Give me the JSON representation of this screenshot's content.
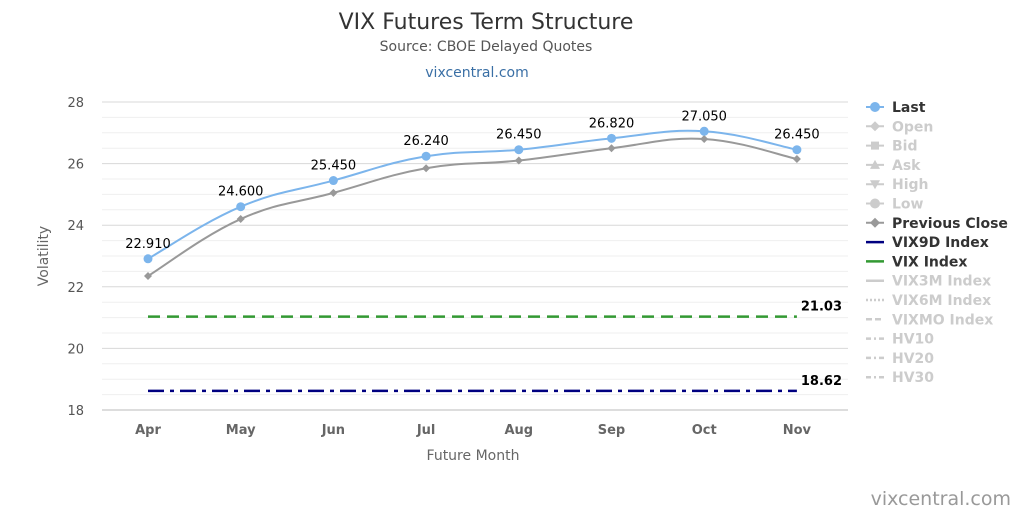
{
  "chart_data": {
    "type": "line",
    "title": "VIX Futures Term Structure",
    "subtitle": "Source: CBOE Delayed Quotes",
    "link_text": "vixcentral.com",
    "credit": "vixcentral.com",
    "xlabel": "Future Month",
    "ylabel": "Volatility",
    "ylim": [
      18,
      28
    ],
    "yticks": [
      "18",
      "20",
      "22",
      "24",
      "26",
      "28"
    ],
    "categories": [
      "Apr",
      "May",
      "Jun",
      "Jul",
      "Aug",
      "Sep",
      "Oct",
      "Nov"
    ],
    "grid": true,
    "legend_position": "right",
    "series": [
      {
        "name": "Last",
        "values": [
          22.91,
          24.6,
          25.45,
          26.24,
          26.45,
          26.82,
          27.05,
          26.45
        ],
        "labels": [
          "22.910",
          "24.600",
          "25.450",
          "26.240",
          "26.450",
          "26.820",
          "27.050",
          "26.450"
        ],
        "color": "#7cb5ec"
      },
      {
        "name": "Previous Close",
        "values": [
          22.35,
          24.2,
          25.05,
          25.85,
          26.1,
          26.5,
          26.8,
          26.15
        ],
        "color": "#999999"
      }
    ],
    "reference_lines": [
      {
        "name": "VIX Index",
        "value": 21.03,
        "label": "21.03",
        "color": "#339933"
      },
      {
        "name": "VIX9D Index",
        "value": 18.62,
        "label": "18.62",
        "color": "#000080"
      }
    ],
    "legend": [
      {
        "name": "Last",
        "active": true,
        "color": "#7cb5ec",
        "symbol": "circle"
      },
      {
        "name": "Open",
        "active": false,
        "symbol": "diamond"
      },
      {
        "name": "Bid",
        "active": false,
        "symbol": "square"
      },
      {
        "name": "Ask",
        "active": false,
        "symbol": "triangle"
      },
      {
        "name": "High",
        "active": false,
        "symbol": "triangle-down"
      },
      {
        "name": "Low",
        "active": false,
        "symbol": "circle"
      },
      {
        "name": "Previous Close",
        "active": true,
        "color": "#999999",
        "symbol": "diamond"
      },
      {
        "name": "VIX9D Index",
        "active": true,
        "color": "#000080",
        "symbol": "line"
      },
      {
        "name": "VIX Index",
        "active": true,
        "color": "#339933",
        "symbol": "line"
      },
      {
        "name": "VIX3M Index",
        "active": false,
        "symbol": "line"
      },
      {
        "name": "VIX6M Index",
        "active": false,
        "symbol": "dotted"
      },
      {
        "name": "VIXMO Index",
        "active": false,
        "symbol": "dashed"
      },
      {
        "name": "HV10",
        "active": false,
        "symbol": "dashdot"
      },
      {
        "name": "HV20",
        "active": false,
        "symbol": "dashdot"
      },
      {
        "name": "HV30",
        "active": false,
        "symbol": "dashdot"
      }
    ]
  }
}
